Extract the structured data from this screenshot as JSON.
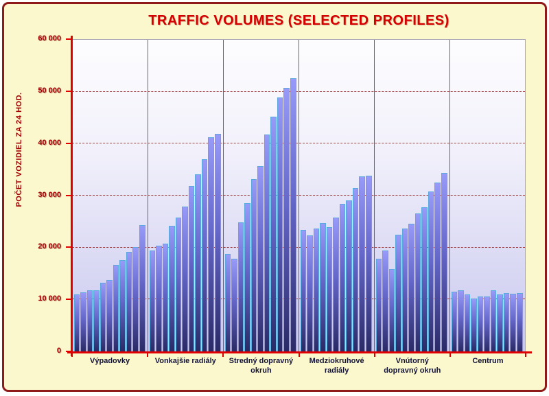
{
  "frame": {
    "background": "#FBF8CD",
    "border_color": "#8E1A1A"
  },
  "chart_data": {
    "type": "bar",
    "title": "TRAFFIC VOLUMES (SELECTED PROFILES)",
    "ylabel": "POČET VOZIDIEL ZA 24 HOD.",
    "xlabel": "",
    "ylim": [
      0,
      60000
    ],
    "ytick_step": 10000,
    "grid": "horizontal dashed lines every 10000",
    "legend_position": "none",
    "bars_per_group": 11,
    "yticks": [
      {
        "value": 60000,
        "label": "60 000"
      },
      {
        "value": 50000,
        "label": "50 000"
      },
      {
        "value": 40000,
        "label": "40 000"
      },
      {
        "value": 30000,
        "label": "30 000"
      },
      {
        "value": 20000,
        "label": "20 000"
      },
      {
        "value": 10000,
        "label": "10 000"
      },
      {
        "value": 0,
        "label": "0"
      }
    ],
    "categories": [
      "Výpadovky",
      "Vonkajšie radiály",
      "Stredný dopravný okruh",
      "Medziokruhové radiály",
      "Vnútorný dopravný okruh",
      "Centrum"
    ],
    "groups": [
      {
        "category": "Výpadovky",
        "values": [
          11000,
          11400,
          11700,
          11700,
          13200,
          13800,
          16600,
          17600,
          19100,
          20100,
          24300
        ]
      },
      {
        "category": "Vonkajšie radiály",
        "values": [
          19400,
          20400,
          20700,
          24200,
          25800,
          27900,
          31900,
          34100,
          37000,
          41200,
          41900
        ]
      },
      {
        "category": "Stredný dopravný okruh",
        "values": [
          18800,
          17800,
          24900,
          28600,
          33200,
          35700,
          41700,
          45200,
          48900,
          50800,
          52600
        ]
      },
      {
        "category": "Medziokruhové radiály",
        "values": [
          23400,
          22400,
          23700,
          24700,
          23900,
          25800,
          28400,
          29100,
          31500,
          33700,
          33900
        ]
      },
      {
        "category": "Vnútorný dopravný okruh",
        "values": [
          17800,
          19400,
          15900,
          22500,
          23700,
          24600,
          26600,
          27700,
          30800,
          32500,
          34400
        ]
      },
      {
        "category": "Centrum",
        "values": [
          11500,
          11800,
          11000,
          10200,
          10600,
          10600,
          11800,
          11000,
          11300,
          11100,
          11300
        ]
      }
    ],
    "colors": {
      "axis": "#E00000",
      "tick_label": "#A00000",
      "title": "#D40000",
      "gridline": "#9E3A3A",
      "group_separator": "#A34848",
      "bar_border": "#5AAADE",
      "bar_gradient_top": "#989AF9",
      "bar_gradient_bottom": "#2A2A66",
      "plot_bg_top": "#FDFDFF",
      "plot_bg_bottom": "#C8C7EE",
      "category_label": "#14143A",
      "frame_background": "#FBF8CD",
      "frame_border": "#8E1A1A"
    }
  }
}
